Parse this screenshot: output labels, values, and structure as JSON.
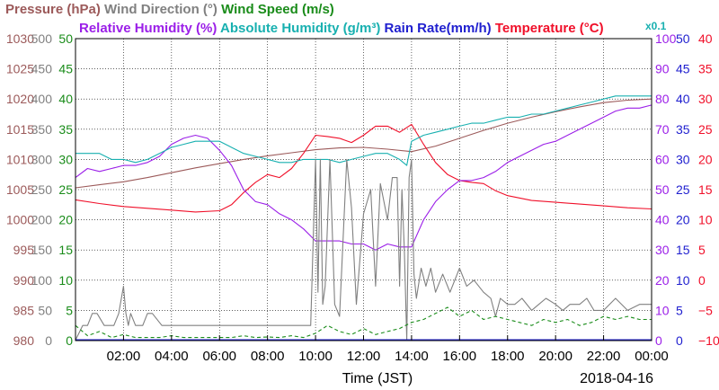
{
  "chart_data": {
    "type": "line",
    "date": "2018-04-16",
    "xlabel": "Time (JST)",
    "multiplier_note": "x0.1",
    "grid": true,
    "x_ticks": [
      "02:00",
      "04:00",
      "06:00",
      "08:00",
      "10:00",
      "12:00",
      "14:00",
      "16:00",
      "18:00",
      "20:00",
      "22:00",
      "00:00"
    ],
    "x_range_hours": [
      0,
      24
    ],
    "legend_row1": [
      {
        "text": "Pressure (hPa)",
        "color": "#9c5a5a"
      },
      {
        "text": "Wind Direction (°)",
        "color": "#808080"
      },
      {
        "text": "Wind Speed (m/s)",
        "color": "#1a8c1a"
      }
    ],
    "legend_row2": [
      {
        "text": "Relative Humidity (%)",
        "color": "#9b1fe8"
      },
      {
        "text": "Absolute Humidity (g/m³)",
        "color": "#18b0b0"
      },
      {
        "text": "Rain Rate(mm/h)",
        "color": "#1f1fcf"
      },
      {
        "text": "Temperature (°C)",
        "color": "#f0102a"
      }
    ],
    "axes": [
      {
        "name": "Pressure",
        "color": "#9c5a5a",
        "ticks": [
          "980",
          "985",
          "990",
          "995",
          "1000",
          "1005",
          "1010",
          "1015",
          "1020",
          "1025",
          "1030"
        ],
        "range": [
          980,
          1030
        ]
      },
      {
        "name": "Wind Direction",
        "color": "#808080",
        "ticks": [
          "0",
          "50",
          "100",
          "150",
          "200",
          "250",
          "300",
          "350",
          "400",
          "450",
          "500"
        ],
        "range": [
          0,
          500
        ]
      },
      {
        "name": "Wind Speed",
        "color": "#1a8c1a",
        "ticks": [
          "0",
          "5",
          "10",
          "15",
          "20",
          "25",
          "30",
          "35",
          "40",
          "45",
          "50"
        ],
        "range": [
          0,
          50
        ]
      },
      {
        "name": "Relative Humidity",
        "color": "#9b1fe8",
        "ticks": [
          "0",
          "10",
          "20",
          "30",
          "40",
          "50",
          "60",
          "70",
          "80",
          "90",
          "100"
        ],
        "range": [
          0,
          100
        ]
      },
      {
        "name": "Rain Rate",
        "color": "#1f1fcf",
        "ticks": [
          "0",
          "5",
          "10",
          "15",
          "20",
          "25",
          "30",
          "35",
          "40",
          "45",
          "50"
        ],
        "range": [
          0,
          50
        ]
      },
      {
        "name": "Temperature",
        "color": "#f0102a",
        "ticks": [
          "−10",
          "−5",
          "0",
          "5",
          "10",
          "15",
          "20",
          "25",
          "30",
          "35",
          "40"
        ],
        "range": [
          -10,
          40
        ]
      }
    ],
    "series": [
      {
        "name": "Pressure (hPa)",
        "color": "#9c5a5a",
        "axis": "Pressure",
        "x": [
          0,
          1,
          2,
          3,
          4,
          5,
          6,
          7,
          8,
          9,
          10,
          11,
          12,
          13,
          14,
          15,
          16,
          17,
          18,
          19,
          20,
          21,
          22,
          23,
          24
        ],
        "y": [
          1005.3,
          1005.8,
          1006.3,
          1007.0,
          1007.8,
          1008.6,
          1009.3,
          1010.0,
          1010.6,
          1011.1,
          1011.6,
          1011.9,
          1012.0,
          1011.7,
          1011.3,
          1012.2,
          1013.5,
          1014.8,
          1016.0,
          1017.0,
          1017.9,
          1018.7,
          1019.4,
          1019.8,
          1020.0
        ]
      },
      {
        "name": "Temperature (°C)",
        "color": "#f0102a",
        "axis": "Temperature",
        "x": [
          0,
          1,
          2,
          3,
          4,
          5,
          6,
          6.5,
          7,
          7.5,
          8,
          8.5,
          9,
          9.5,
          10,
          10.5,
          11,
          11.5,
          12,
          12.5,
          13,
          13.5,
          14,
          14.5,
          15,
          15.5,
          16,
          16.5,
          17,
          17.5,
          18,
          19,
          20,
          21,
          22,
          23,
          24
        ],
        "y": [
          13.3,
          12.7,
          12.2,
          11.9,
          11.6,
          11.3,
          11.5,
          12.5,
          14.5,
          16.2,
          17.5,
          17.0,
          18.5,
          21.0,
          24.0,
          23.8,
          23.5,
          22.8,
          24.0,
          25.5,
          25.5,
          24.5,
          25.8,
          22.5,
          19.5,
          17.5,
          16.5,
          16.2,
          16.0,
          14.8,
          14.0,
          13.2,
          12.9,
          12.6,
          12.3,
          12.0,
          11.8
        ]
      },
      {
        "name": "Relative Humidity (%)",
        "color": "#9b1fe8",
        "axis": "Relative Humidity",
        "x": [
          0,
          0.5,
          1,
          1.5,
          2,
          2.5,
          3,
          3.5,
          4,
          4.5,
          5,
          5.5,
          6,
          6.5,
          7,
          7.5,
          8,
          8.5,
          9,
          9.5,
          10,
          10.5,
          11,
          11.5,
          12,
          12.5,
          13,
          13.5,
          14,
          14.5,
          15,
          15.5,
          16,
          16.5,
          17,
          17.5,
          18,
          18.5,
          19,
          19.5,
          20,
          20.5,
          21,
          21.5,
          22,
          22.5,
          23,
          23.5,
          24
        ],
        "y": [
          54,
          57,
          56,
          57,
          58,
          58,
          59,
          61,
          65,
          67,
          68,
          67,
          63,
          58,
          50,
          46,
          45,
          42,
          40,
          37,
          33,
          33,
          33,
          32,
          32,
          30,
          32,
          31,
          31,
          40,
          46,
          50,
          53,
          53,
          54,
          56,
          59,
          61,
          63,
          65,
          66,
          68,
          70,
          72,
          74,
          76,
          77,
          77,
          78
        ]
      },
      {
        "name": "Absolute Humidity (g/m³)",
        "color": "#18b0b0",
        "axis": "Wind Speed",
        "x": [
          0,
          0.5,
          1,
          1.5,
          2,
          2.5,
          3,
          3.5,
          4,
          4.5,
          5,
          5.5,
          6,
          6.5,
          7,
          7.5,
          8,
          8.5,
          9,
          9.5,
          10,
          10.5,
          11,
          11.5,
          12,
          12.5,
          13,
          13.5,
          13.8,
          14,
          14.5,
          15,
          15.5,
          16,
          16.5,
          17,
          17.5,
          18,
          18.5,
          19,
          19.5,
          20,
          20.5,
          21,
          21.5,
          22,
          22.5,
          23,
          23.5,
          24
        ],
        "y": [
          31,
          31,
          31,
          30,
          30,
          29.5,
          30,
          31,
          32,
          32.5,
          33,
          33,
          33,
          32,
          31,
          30.5,
          30,
          29.5,
          29.5,
          30,
          30,
          30,
          29.5,
          30,
          30.5,
          31,
          31,
          30,
          29,
          33,
          34,
          34.5,
          35,
          35.5,
          36,
          36,
          36.5,
          37,
          37,
          37.5,
          37.5,
          38,
          38.5,
          39,
          39.5,
          40,
          40.5,
          40.5,
          40.5,
          40.5
        ]
      },
      {
        "name": "Wind Direction (°)",
        "color": "#808080",
        "axis": "Wind Direction",
        "x": [
          0,
          0.3,
          0.5,
          0.7,
          0.9,
          1.2,
          1.4,
          1.6,
          1.8,
          2.0,
          2.1,
          2.2,
          2.3,
          2.5,
          2.8,
          3.0,
          3.2,
          3.6,
          4.0,
          4.5,
          5.0,
          5.5,
          6.0,
          6.5,
          7.0,
          7.5,
          8.0,
          8.5,
          9.0,
          9.5,
          9.8,
          10.0,
          10.1,
          10.2,
          10.3,
          10.4,
          10.6,
          10.8,
          11.0,
          11.3,
          11.5,
          11.7,
          12.0,
          12.3,
          12.5,
          12.7,
          13.0,
          13.2,
          13.4,
          13.5,
          13.6,
          13.7,
          13.8,
          13.9,
          14.0,
          14.1,
          14.2,
          14.4,
          14.6,
          14.8,
          15.0,
          15.3,
          15.6,
          16.0,
          16.3,
          16.6,
          17.0,
          17.3,
          17.5,
          17.7,
          18.0,
          18.3,
          18.6,
          19.0,
          19.3,
          19.6,
          20.0,
          20.3,
          20.6,
          21.0,
          21.3,
          21.6,
          22.0,
          22.5,
          23.0,
          23.5,
          23.8,
          24.0
        ],
        "y": [
          0,
          25,
          25,
          45,
          45,
          25,
          25,
          25,
          45,
          90,
          45,
          25,
          45,
          25,
          25,
          45,
          45,
          25,
          25,
          25,
          25,
          25,
          25,
          25,
          25,
          25,
          25,
          25,
          25,
          25,
          25,
          300,
          80,
          300,
          60,
          90,
          300,
          60,
          40,
          300,
          220,
          60,
          210,
          250,
          90,
          260,
          200,
          270,
          270,
          90,
          250,
          150,
          0,
          270,
          300,
          110,
          70,
          120,
          90,
          120,
          80,
          110,
          80,
          120,
          90,
          100,
          80,
          70,
          40,
          70,
          60,
          60,
          70,
          50,
          60,
          70,
          60,
          50,
          60,
          60,
          70,
          50,
          50,
          70,
          50,
          60,
          60,
          60
        ]
      },
      {
        "name": "Wind Speed (m/s)",
        "color": "#1a8c1a",
        "axis": "Wind Speed",
        "x": [
          0,
          0.5,
          1,
          1.5,
          2,
          2.5,
          3,
          3.5,
          4,
          4.5,
          5,
          5.5,
          6,
          6.5,
          7,
          7.5,
          8,
          8.5,
          9,
          9.5,
          10,
          10.5,
          11,
          11.5,
          12,
          12.5,
          13,
          13.5,
          14,
          14.5,
          15,
          15.5,
          16,
          16.5,
          17,
          17.5,
          18,
          18.5,
          19,
          19.5,
          20,
          20.5,
          21,
          21.5,
          22,
          22.5,
          23,
          23.5,
          24
        ],
        "y": [
          2.5,
          0.8,
          1.5,
          0.5,
          1.0,
          0.5,
          0.5,
          0.5,
          0.8,
          0.5,
          0.5,
          0.5,
          0.5,
          0.5,
          0.8,
          0.5,
          0.6,
          0.5,
          0.8,
          0.5,
          1.2,
          2.5,
          1.5,
          1.0,
          2.0,
          1.0,
          1.5,
          2.0,
          3.0,
          3.5,
          4.5,
          5.5,
          4.0,
          5.0,
          3.5,
          4.0,
          3.5,
          3.0,
          2.5,
          3.5,
          3.0,
          3.5,
          2.5,
          3.0,
          4.0,
          3.5,
          4.0,
          3.5,
          3.5
        ]
      },
      {
        "name": "Rain Rate(mm/h)",
        "color": "#1f1fcf",
        "axis": "Rain Rate",
        "x": [
          0,
          24
        ],
        "y": [
          0,
          0
        ]
      }
    ]
  }
}
